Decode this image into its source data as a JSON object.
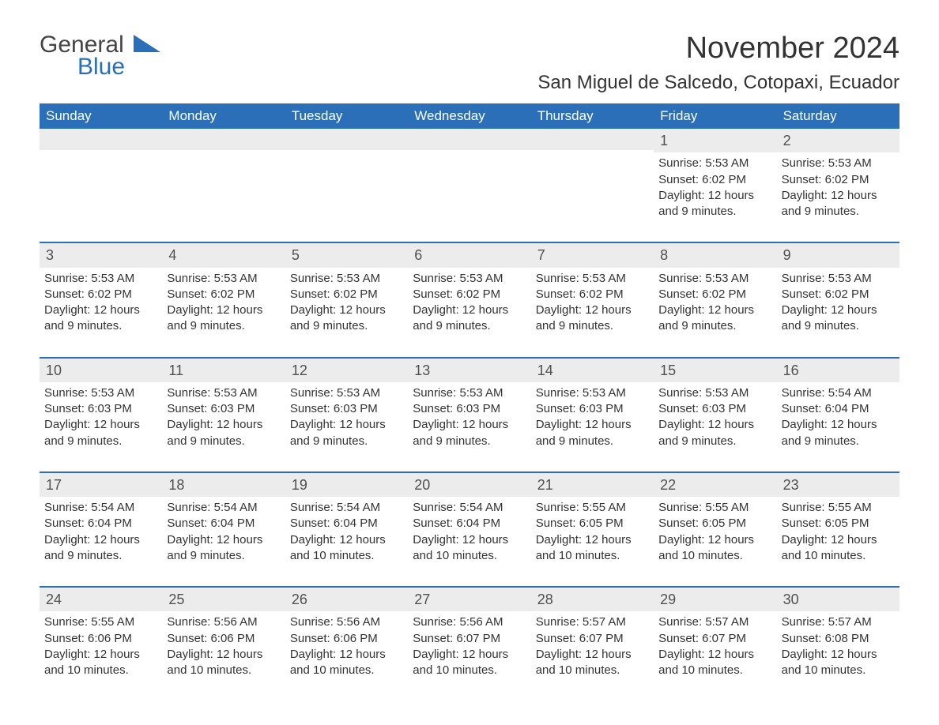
{
  "logo": {
    "text1": "General",
    "text2": "Blue",
    "color_general": "#444444",
    "color_blue": "#2a6fb8"
  },
  "title": "November 2024",
  "location": "San Miguel de Salcedo, Cotopaxi, Ecuador",
  "colors": {
    "header_bg": "#2a6fb8",
    "header_text": "#ffffff",
    "band_bg": "#ececec",
    "rule": "#2a6fb8",
    "body_text": "#333333",
    "background": "#ffffff"
  },
  "dow": [
    "Sunday",
    "Monday",
    "Tuesday",
    "Wednesday",
    "Thursday",
    "Friday",
    "Saturday"
  ],
  "weeks": [
    [
      {
        "n": "",
        "rise": "",
        "set": "",
        "day": ""
      },
      {
        "n": "",
        "rise": "",
        "set": "",
        "day": ""
      },
      {
        "n": "",
        "rise": "",
        "set": "",
        "day": ""
      },
      {
        "n": "",
        "rise": "",
        "set": "",
        "day": ""
      },
      {
        "n": "",
        "rise": "",
        "set": "",
        "day": ""
      },
      {
        "n": "1",
        "rise": "Sunrise: 5:53 AM",
        "set": "Sunset: 6:02 PM",
        "day": "Daylight: 12 hours and 9 minutes."
      },
      {
        "n": "2",
        "rise": "Sunrise: 5:53 AM",
        "set": "Sunset: 6:02 PM",
        "day": "Daylight: 12 hours and 9 minutes."
      }
    ],
    [
      {
        "n": "3",
        "rise": "Sunrise: 5:53 AM",
        "set": "Sunset: 6:02 PM",
        "day": "Daylight: 12 hours and 9 minutes."
      },
      {
        "n": "4",
        "rise": "Sunrise: 5:53 AM",
        "set": "Sunset: 6:02 PM",
        "day": "Daylight: 12 hours and 9 minutes."
      },
      {
        "n": "5",
        "rise": "Sunrise: 5:53 AM",
        "set": "Sunset: 6:02 PM",
        "day": "Daylight: 12 hours and 9 minutes."
      },
      {
        "n": "6",
        "rise": "Sunrise: 5:53 AM",
        "set": "Sunset: 6:02 PM",
        "day": "Daylight: 12 hours and 9 minutes."
      },
      {
        "n": "7",
        "rise": "Sunrise: 5:53 AM",
        "set": "Sunset: 6:02 PM",
        "day": "Daylight: 12 hours and 9 minutes."
      },
      {
        "n": "8",
        "rise": "Sunrise: 5:53 AM",
        "set": "Sunset: 6:02 PM",
        "day": "Daylight: 12 hours and 9 minutes."
      },
      {
        "n": "9",
        "rise": "Sunrise: 5:53 AM",
        "set": "Sunset: 6:02 PM",
        "day": "Daylight: 12 hours and 9 minutes."
      }
    ],
    [
      {
        "n": "10",
        "rise": "Sunrise: 5:53 AM",
        "set": "Sunset: 6:03 PM",
        "day": "Daylight: 12 hours and 9 minutes."
      },
      {
        "n": "11",
        "rise": "Sunrise: 5:53 AM",
        "set": "Sunset: 6:03 PM",
        "day": "Daylight: 12 hours and 9 minutes."
      },
      {
        "n": "12",
        "rise": "Sunrise: 5:53 AM",
        "set": "Sunset: 6:03 PM",
        "day": "Daylight: 12 hours and 9 minutes."
      },
      {
        "n": "13",
        "rise": "Sunrise: 5:53 AM",
        "set": "Sunset: 6:03 PM",
        "day": "Daylight: 12 hours and 9 minutes."
      },
      {
        "n": "14",
        "rise": "Sunrise: 5:53 AM",
        "set": "Sunset: 6:03 PM",
        "day": "Daylight: 12 hours and 9 minutes."
      },
      {
        "n": "15",
        "rise": "Sunrise: 5:53 AM",
        "set": "Sunset: 6:03 PM",
        "day": "Daylight: 12 hours and 9 minutes."
      },
      {
        "n": "16",
        "rise": "Sunrise: 5:54 AM",
        "set": "Sunset: 6:04 PM",
        "day": "Daylight: 12 hours and 9 minutes."
      }
    ],
    [
      {
        "n": "17",
        "rise": "Sunrise: 5:54 AM",
        "set": "Sunset: 6:04 PM",
        "day": "Daylight: 12 hours and 9 minutes."
      },
      {
        "n": "18",
        "rise": "Sunrise: 5:54 AM",
        "set": "Sunset: 6:04 PM",
        "day": "Daylight: 12 hours and 9 minutes."
      },
      {
        "n": "19",
        "rise": "Sunrise: 5:54 AM",
        "set": "Sunset: 6:04 PM",
        "day": "Daylight: 12 hours and 10 minutes."
      },
      {
        "n": "20",
        "rise": "Sunrise: 5:54 AM",
        "set": "Sunset: 6:04 PM",
        "day": "Daylight: 12 hours and 10 minutes."
      },
      {
        "n": "21",
        "rise": "Sunrise: 5:55 AM",
        "set": "Sunset: 6:05 PM",
        "day": "Daylight: 12 hours and 10 minutes."
      },
      {
        "n": "22",
        "rise": "Sunrise: 5:55 AM",
        "set": "Sunset: 6:05 PM",
        "day": "Daylight: 12 hours and 10 minutes."
      },
      {
        "n": "23",
        "rise": "Sunrise: 5:55 AM",
        "set": "Sunset: 6:05 PM",
        "day": "Daylight: 12 hours and 10 minutes."
      }
    ],
    [
      {
        "n": "24",
        "rise": "Sunrise: 5:55 AM",
        "set": "Sunset: 6:06 PM",
        "day": "Daylight: 12 hours and 10 minutes."
      },
      {
        "n": "25",
        "rise": "Sunrise: 5:56 AM",
        "set": "Sunset: 6:06 PM",
        "day": "Daylight: 12 hours and 10 minutes."
      },
      {
        "n": "26",
        "rise": "Sunrise: 5:56 AM",
        "set": "Sunset: 6:06 PM",
        "day": "Daylight: 12 hours and 10 minutes."
      },
      {
        "n": "27",
        "rise": "Sunrise: 5:56 AM",
        "set": "Sunset: 6:07 PM",
        "day": "Daylight: 12 hours and 10 minutes."
      },
      {
        "n": "28",
        "rise": "Sunrise: 5:57 AM",
        "set": "Sunset: 6:07 PM",
        "day": "Daylight: 12 hours and 10 minutes."
      },
      {
        "n": "29",
        "rise": "Sunrise: 5:57 AM",
        "set": "Sunset: 6:07 PM",
        "day": "Daylight: 12 hours and 10 minutes."
      },
      {
        "n": "30",
        "rise": "Sunrise: 5:57 AM",
        "set": "Sunset: 6:08 PM",
        "day": "Daylight: 12 hours and 10 minutes."
      }
    ]
  ]
}
